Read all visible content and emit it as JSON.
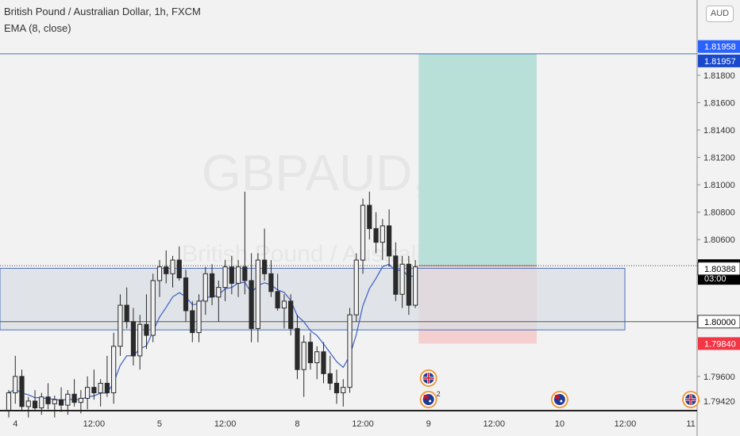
{
  "header": {
    "title": "British Pound / Australian Dollar, 1h, FXCM",
    "indicator": "EMA (8, close)",
    "currency_button": "AUD"
  },
  "watermark": {
    "symbol": "GBPAUD, 1h",
    "name": "British Pound / Australian Dollar"
  },
  "colors": {
    "up": "#2a2a2a",
    "down": "#2a2a2a",
    "ema": "#3b5ec7",
    "target_zone": "#b9e0d8",
    "stop_zone": "#f5c9c9",
    "support_zone": "#d9dde3",
    "zone_border": "#4a6fc0",
    "price_tag": "#000000",
    "blue_tag": "#2962ff",
    "red_tag": "#f23645"
  },
  "chart_data": {
    "type": "candlestick",
    "title": "British Pound / Australian Dollar, 1h, FXCM",
    "ylim": [
      1.7935,
      1.8235
    ],
    "y_ticks": [
      "1.79420",
      "1.79600",
      "1.80000",
      "1.80600",
      "1.80800",
      "1.81000",
      "1.81200",
      "1.81400",
      "1.81600",
      "1.81800"
    ],
    "x_ticks": [
      {
        "label": "4",
        "index": 1
      },
      {
        "label": "12:00",
        "index": 13
      },
      {
        "label": "5",
        "index": 23
      },
      {
        "label": "12:00",
        "index": 33
      },
      {
        "label": "8",
        "index": 44
      },
      {
        "label": "12:00",
        "index": 54
      },
      {
        "label": "9",
        "index": 64
      },
      {
        "label": "12:00",
        "index": 74
      },
      {
        "label": "10",
        "index": 84
      },
      {
        "label": "12:00",
        "index": 94
      },
      {
        "label": "11",
        "index": 104
      }
    ],
    "candles": [
      [
        1.7935,
        1.795,
        1.793,
        1.7948
      ],
      [
        1.7948,
        1.7975,
        1.794,
        1.796
      ],
      [
        1.796,
        1.7965,
        1.7935,
        1.7938
      ],
      [
        1.7938,
        1.7945,
        1.793,
        1.7942
      ],
      [
        1.7942,
        1.795,
        1.7935,
        1.7937
      ],
      [
        1.7937,
        1.7948,
        1.7932,
        1.7945
      ],
      [
        1.7945,
        1.7955,
        1.7936,
        1.794
      ],
      [
        1.794,
        1.7946,
        1.793,
        1.7943
      ],
      [
        1.7943,
        1.7952,
        1.7934,
        1.7939
      ],
      [
        1.7939,
        1.795,
        1.7932,
        1.7947
      ],
      [
        1.7947,
        1.7958,
        1.7938,
        1.7941
      ],
      [
        1.7941,
        1.795,
        1.7933,
        1.7944
      ],
      [
        1.7944,
        1.796,
        1.7936,
        1.7952
      ],
      [
        1.7952,
        1.7965,
        1.7943,
        1.7948
      ],
      [
        1.7948,
        1.7958,
        1.7938,
        1.7955
      ],
      [
        1.7955,
        1.7975,
        1.7945,
        1.7948
      ],
      [
        1.7948,
        1.7992,
        1.794,
        1.7982
      ],
      [
        1.7982,
        1.802,
        1.7975,
        1.8012
      ],
      [
        1.8012,
        1.8025,
        1.7995,
        1.8
      ],
      [
        1.8,
        1.801,
        1.7968,
        1.7975
      ],
      [
        1.7975,
        1.8005,
        1.7965,
        1.7998
      ],
      [
        1.7998,
        1.802,
        1.798,
        1.799
      ],
      [
        1.799,
        1.8035,
        1.7985,
        1.803
      ],
      [
        1.803,
        1.8045,
        1.8018,
        1.804
      ],
      [
        1.804,
        1.8052,
        1.8028,
        1.8035
      ],
      [
        1.8035,
        1.8048,
        1.8025,
        1.8045
      ],
      [
        1.8045,
        1.8055,
        1.803,
        1.8032
      ],
      [
        1.8032,
        1.8038,
        1.8,
        1.8008
      ],
      [
        1.8008,
        1.8015,
        1.7985,
        1.7992
      ],
      [
        1.7992,
        1.802,
        1.7985,
        1.8015
      ],
      [
        1.8015,
        1.804,
        1.8005,
        1.8035
      ],
      [
        1.8035,
        1.8042,
        1.8012,
        1.8018
      ],
      [
        1.8018,
        1.803,
        1.8,
        1.8025
      ],
      [
        1.8025,
        1.8045,
        1.8015,
        1.804
      ],
      [
        1.804,
        1.8048,
        1.802,
        1.8028
      ],
      [
        1.8028,
        1.8045,
        1.8018,
        1.804
      ],
      [
        1.804,
        1.8095,
        1.802,
        1.803
      ],
      [
        1.803,
        1.805,
        1.7985,
        1.7995
      ],
      [
        1.7995,
        1.805,
        1.7985,
        1.8045
      ],
      [
        1.8045,
        1.8068,
        1.803,
        1.8035
      ],
      [
        1.8035,
        1.8045,
        1.8018,
        1.8022
      ],
      [
        1.8022,
        1.8035,
        1.8008,
        1.801
      ],
      [
        1.801,
        1.802,
        1.7995,
        1.8015
      ],
      [
        1.8015,
        1.802,
        1.799,
        1.7995
      ],
      [
        1.7995,
        1.8005,
        1.7958,
        1.7965
      ],
      [
        1.7965,
        1.799,
        1.7945,
        1.7985
      ],
      [
        1.7985,
        1.7992,
        1.7965,
        1.797
      ],
      [
        1.797,
        1.7982,
        1.7958,
        1.7978
      ],
      [
        1.7978,
        1.7985,
        1.7955,
        1.7962
      ],
      [
        1.7962,
        1.7975,
        1.795,
        1.7955
      ],
      [
        1.7955,
        1.7965,
        1.794,
        1.7948
      ],
      [
        1.7948,
        1.7958,
        1.7938,
        1.7952
      ],
      [
        1.7952,
        1.801,
        1.7948,
        1.8005
      ],
      [
        1.8005,
        1.805,
        1.8,
        1.8045
      ],
      [
        1.8045,
        1.809,
        1.8035,
        1.8085
      ],
      [
        1.8085,
        1.8095,
        1.806,
        1.8068
      ],
      [
        1.8068,
        1.808,
        1.805,
        1.8058
      ],
      [
        1.8058,
        1.8075,
        1.8045,
        1.807
      ],
      [
        1.807,
        1.8082,
        1.804,
        1.8048
      ],
      [
        1.8048,
        1.8058,
        1.8015,
        1.802
      ],
      [
        1.802,
        1.8048,
        1.801,
        1.8042
      ],
      [
        1.8042,
        1.8048,
        1.8005,
        1.8012
      ],
      [
        1.8012,
        1.8045,
        1.801,
        1.804
      ]
    ],
    "ema": {
      "period": 8,
      "values_follow_candles": true
    },
    "annotations": {
      "target_level": 1.81957,
      "entry_level": 1.80409,
      "stop_level": 1.7984,
      "support_level": 1.8,
      "support_zone": [
        1.7994,
        1.8039
      ],
      "position_box_index_range": [
        62.5,
        80.5
      ]
    },
    "price_tags": [
      {
        "label": "1.81958",
        "value": 1.81958,
        "style": "blue"
      },
      {
        "label": "1.81957",
        "value": 1.81957,
        "style": "blue_dark"
      },
      {
        "label": "1.80409",
        "value": 1.80409,
        "style": "black"
      },
      {
        "label": "03:00",
        "value": 1.80409,
        "style": "black_sub"
      },
      {
        "label": "1.80388",
        "value": 1.80388,
        "style": "box"
      },
      {
        "label": "1.80000",
        "value": 1.8,
        "style": "box"
      },
      {
        "label": "1.79840",
        "value": 1.7984,
        "style": "red"
      }
    ],
    "events": [
      {
        "flag": "GB",
        "index": 64,
        "row": 0,
        "count": ""
      },
      {
        "flag": "AU",
        "index": 64,
        "row": 1,
        "count": "2"
      },
      {
        "flag": "AU",
        "index": 84,
        "row": 1,
        "count": ""
      },
      {
        "flag": "GB",
        "index": 104,
        "row": 1,
        "count": ""
      }
    ],
    "grid": false,
    "legend": "top-left"
  }
}
